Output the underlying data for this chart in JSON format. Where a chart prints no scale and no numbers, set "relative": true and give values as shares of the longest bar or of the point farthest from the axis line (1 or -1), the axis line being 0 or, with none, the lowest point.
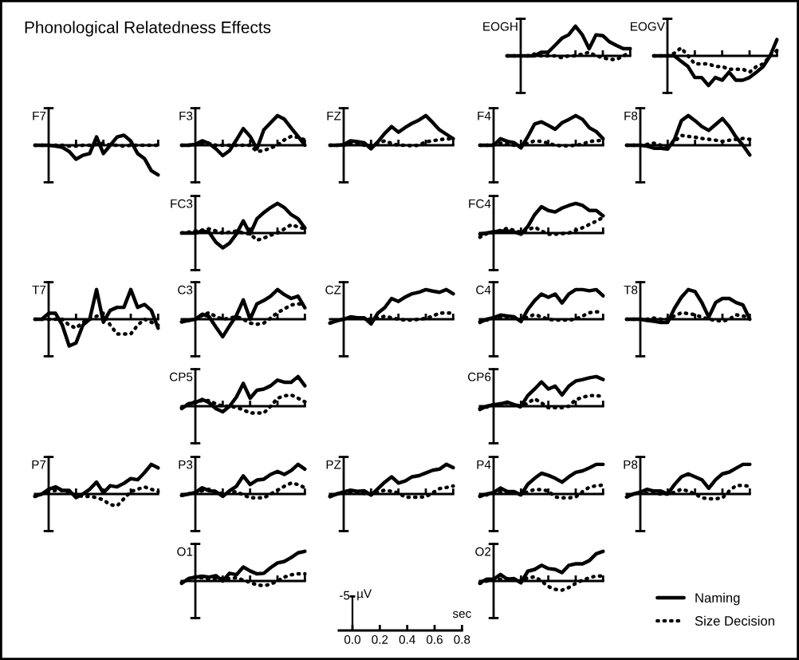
{
  "chart_data": [
    {
      "type": "other",
      "title": "Phonological Relatedness Effects"
    },
    {
      "type": "line",
      "ylabel": "EOGH",
      "relative": true,
      "categories": [
        null,
        null,
        null,
        null,
        null,
        null,
        null,
        null,
        null,
        null,
        null,
        null,
        null,
        null,
        null,
        null,
        null,
        null,
        null
      ],
      "series": [
        {
          "color": "#000000",
          "line_style": "solid",
          "values": [
            0,
            0,
            0,
            0,
            0,
            0.12,
            0.12,
            0.35,
            0.59,
            0.71,
            1,
            0.71,
            0.24,
            0.71,
            0.68,
            0.47,
            0.35,
            0.24,
            0.24
          ]
        },
        {
          "color": "#000000",
          "line_style": "dotted",
          "values": [
            0,
            0,
            0,
            0,
            0.06,
            0,
            0,
            0,
            -0.06,
            0,
            0,
            0.06,
            0.12,
            0,
            -0.06,
            -0.12,
            -0.12,
            0,
            0.12
          ]
        }
      ]
    },
    {
      "type": "line",
      "ylabel": "EOGV",
      "relative": true,
      "categories": [
        null,
        null,
        null,
        null,
        null,
        null,
        null,
        null,
        null,
        null,
        null,
        null,
        null,
        null,
        null,
        null,
        null,
        null,
        null
      ],
      "series": [
        {
          "color": "#000000",
          "line_style": "solid",
          "values": [
            0,
            0,
            0,
            0,
            -0.18,
            -0.36,
            -0.73,
            -0.73,
            -1,
            -0.73,
            -0.82,
            -0.55,
            -0.82,
            -0.82,
            -0.73,
            -0.55,
            -0.36,
            0,
            0.55
          ]
        },
        {
          "color": "#000000",
          "line_style": "dotted",
          "values": [
            0,
            0,
            0,
            0.09,
            0.27,
            0,
            -0.27,
            -0.27,
            -0.27,
            -0.36,
            -0.36,
            -0.45,
            -0.45,
            -0.45,
            -0.55,
            -0.36,
            -0.27,
            0,
            0.18
          ]
        }
      ]
    },
    {
      "type": "line",
      "ylabel": "F7",
      "relative": true,
      "categories": [
        null,
        null,
        null,
        null,
        null,
        null,
        null,
        null,
        null,
        null,
        null,
        null,
        null,
        null,
        null,
        null,
        null,
        null,
        null
      ],
      "series": [
        {
          "color": "#000000",
          "line_style": "solid",
          "values": [
            0,
            0,
            0,
            -0.03,
            -0.07,
            -0.21,
            -0.47,
            -0.34,
            -0.28,
            0.28,
            -0.28,
            0,
            0.28,
            0.34,
            0.14,
            -0.28,
            -0.45,
            -0.86,
            -1
          ]
        },
        {
          "color": "#000000",
          "line_style": "dotted",
          "values": [
            0,
            0,
            0,
            0,
            0,
            -0.03,
            -0.03,
            0,
            0,
            0.03,
            0.07,
            0,
            0,
            -0.03,
            0,
            0,
            0,
            0,
            0
          ]
        }
      ]
    },
    {
      "type": "line",
      "ylabel": "F3",
      "relative": true,
      "categories": [
        null,
        null,
        null,
        null,
        null,
        null,
        null,
        null,
        null,
        null,
        null,
        null,
        null,
        null,
        null,
        null,
        null,
        null,
        null
      ],
      "series": [
        {
          "color": "#000000",
          "line_style": "solid",
          "values": [
            0,
            0,
            0.03,
            0.15,
            0.06,
            -0.12,
            -0.35,
            -0.18,
            0.18,
            0.56,
            0.3,
            -0.12,
            0.52,
            0.76,
            1,
            0.88,
            0.58,
            0.3,
            0
          ]
        },
        {
          "color": "#000000",
          "line_style": "dotted",
          "values": [
            0,
            0,
            0.03,
            0.06,
            0.06,
            0,
            0,
            0,
            0,
            0,
            0,
            -0.21,
            -0.18,
            -0.09,
            0,
            0.18,
            0.3,
            0.27,
            0.18
          ]
        }
      ]
    },
    {
      "type": "line",
      "ylabel": "FZ",
      "relative": true,
      "categories": [
        null,
        null,
        null,
        null,
        null,
        null,
        null,
        null,
        null,
        null,
        null,
        null,
        null,
        null,
        null,
        null,
        null,
        null,
        null
      ],
      "series": [
        {
          "color": "#000000",
          "line_style": "solid",
          "values": [
            0,
            0,
            0.02,
            0.15,
            0.12,
            0.08,
            -0.12,
            0.12,
            0.4,
            0.63,
            0.44,
            0.6,
            0.74,
            0.85,
            1,
            0.77,
            0.52,
            0.37,
            0.22
          ]
        },
        {
          "color": "#000000",
          "line_style": "dotted",
          "values": [
            0,
            0,
            0,
            0.04,
            0.04,
            0,
            0,
            0.08,
            0.15,
            0.06,
            0,
            0,
            -0.02,
            0,
            0.12,
            0.15,
            0.19,
            0.21,
            0.22
          ]
        }
      ]
    },
    {
      "type": "line",
      "ylabel": "F4",
      "relative": true,
      "categories": [
        null,
        null,
        null,
        null,
        null,
        null,
        null,
        null,
        null,
        null,
        null,
        null,
        null,
        null,
        null,
        null,
        null,
        null,
        null
      ],
      "series": [
        {
          "color": "#000000",
          "line_style": "solid",
          "values": [
            0,
            0,
            0,
            0.22,
            0.13,
            0.09,
            -0.09,
            0.29,
            0.72,
            0.79,
            0.67,
            0.54,
            0.76,
            0.87,
            1,
            0.87,
            0.59,
            0.46,
            0.22
          ]
        },
        {
          "color": "#000000",
          "line_style": "dotted",
          "values": [
            0,
            0,
            0.02,
            0.07,
            0.04,
            0,
            -0.04,
            0.07,
            0.15,
            0.13,
            0.07,
            0,
            -0.02,
            -0.02,
            0,
            0.04,
            0.13,
            0.15,
            0.17
          ]
        }
      ]
    },
    {
      "type": "line",
      "ylabel": "F8",
      "relative": true,
      "categories": [
        null,
        null,
        null,
        null,
        null,
        null,
        null,
        null,
        null,
        null,
        null,
        null,
        null,
        null,
        null,
        null,
        null,
        null,
        null
      ],
      "series": [
        {
          "color": "#000000",
          "line_style": "solid",
          "values": [
            0,
            0,
            0,
            -0.03,
            -0.1,
            -0.1,
            -0.13,
            0.2,
            0.83,
            1,
            0.83,
            0.63,
            0.5,
            0.7,
            0.9,
            0.63,
            0.27,
            0,
            -0.33
          ]
        },
        {
          "color": "#000000",
          "line_style": "dotted",
          "values": [
            0,
            0,
            0,
            0.03,
            0.07,
            0,
            -0.07,
            0.13,
            0.33,
            0.3,
            0.27,
            0.23,
            0.2,
            0.17,
            0.13,
            0.17,
            0.2,
            0.23,
            0.2
          ]
        }
      ]
    },
    {
      "type": "line",
      "ylabel": "FC3",
      "relative": true,
      "categories": [
        null,
        null,
        null,
        null,
        null,
        null,
        null,
        null,
        null,
        null,
        null,
        null,
        null,
        null,
        null,
        null,
        null,
        null,
        null
      ],
      "series": [
        {
          "color": "#000000",
          "line_style": "solid",
          "values": [
            0,
            0,
            0,
            0.07,
            0.03,
            -0.31,
            -0.5,
            -0.34,
            -0.03,
            0.41,
            -0.03,
            0.48,
            0.69,
            0.86,
            1,
            0.86,
            0.62,
            0.48,
            0.17
          ]
        },
        {
          "color": "#000000",
          "line_style": "dotted",
          "values": [
            0,
            0.03,
            0.07,
            0.1,
            0.14,
            0.07,
            0,
            0.03,
            0.07,
            0,
            -0.03,
            -0.24,
            -0.17,
            -0.07,
            0,
            0.14,
            0.28,
            0.21,
            0.14
          ]
        }
      ]
    },
    {
      "type": "line",
      "ylabel": "FC4",
      "relative": true,
      "categories": [
        null,
        null,
        null,
        null,
        null,
        null,
        null,
        null,
        null,
        null,
        null,
        null,
        null,
        null,
        null,
        null,
        null,
        null,
        null
      ],
      "series": [
        {
          "color": "#000000",
          "line_style": "solid",
          "values": [
            -0.04,
            0,
            0.04,
            0.07,
            0.07,
            0.04,
            -0.04,
            0.22,
            0.62,
            0.89,
            0.76,
            0.71,
            0.84,
            0.93,
            1,
            0.93,
            0.76,
            0.76,
            0.58
          ]
        },
        {
          "color": "#000000",
          "line_style": "dotted",
          "values": [
            -0.14,
            -0.02,
            0.02,
            0.09,
            0.16,
            0.09,
            0.02,
            0.11,
            0.2,
            0.07,
            -0.04,
            -0.04,
            -0.02,
            0,
            0.09,
            0.18,
            0.29,
            0.4,
            0.53
          ]
        }
      ]
    },
    {
      "type": "line",
      "ylabel": "T7",
      "relative": true,
      "categories": [
        null,
        null,
        null,
        null,
        null,
        null,
        null,
        null,
        null,
        null,
        null,
        null,
        null,
        null,
        null,
        null,
        null,
        null,
        null
      ],
      "series": [
        {
          "color": "#000000",
          "line_style": "solid",
          "values": [
            0,
            0,
            0.2,
            0.2,
            -0.2,
            -0.9,
            -0.8,
            -0.2,
            0,
            1,
            -0.1,
            0.3,
            0.4,
            0.4,
            1,
            0.4,
            0.5,
            0.3,
            -0.3
          ]
        },
        {
          "color": "#000000",
          "line_style": "dotted",
          "values": [
            0,
            0,
            0,
            0,
            0,
            -0.2,
            -0.3,
            -0.1,
            0,
            0.1,
            0.2,
            -0.2,
            -0.5,
            -0.5,
            -0.5,
            -0.2,
            0,
            -0.1,
            -0.2
          ]
        }
      ]
    },
    {
      "type": "line",
      "ylabel": "C3",
      "relative": true,
      "categories": [
        null,
        null,
        null,
        null,
        null,
        null,
        null,
        null,
        null,
        null,
        null,
        null,
        null,
        null,
        null,
        null,
        null,
        null,
        null
      ],
      "series": [
        {
          "color": "#000000",
          "line_style": "solid",
          "values": [
            -0.09,
            -0.04,
            0,
            0.17,
            0.09,
            -0.26,
            -0.59,
            -0.22,
            0.13,
            0.65,
            0,
            0.52,
            0.63,
            0.78,
            1,
            0.83,
            0.7,
            0.78,
            0.39
          ]
        },
        {
          "color": "#000000",
          "line_style": "dotted",
          "values": [
            -0.09,
            -0.04,
            0,
            0.13,
            0.22,
            0.09,
            0,
            0.04,
            0.09,
            0,
            -0.13,
            -0.17,
            -0.13,
            0.04,
            0.22,
            0.35,
            0.48,
            0.52,
            0.48
          ]
        }
      ]
    },
    {
      "type": "line",
      "ylabel": "CZ",
      "relative": true,
      "categories": [
        null,
        null,
        null,
        null,
        null,
        null,
        null,
        null,
        null,
        null,
        null,
        null,
        null,
        null,
        null,
        null,
        null,
        null,
        null
      ],
      "series": [
        {
          "color": "#000000",
          "line_style": "solid",
          "values": [
            -0.13,
            -0.05,
            0,
            0.08,
            0.05,
            0.05,
            -0.16,
            0.21,
            0.39,
            0.7,
            0.6,
            0.75,
            0.86,
            0.91,
            1,
            0.95,
            0.91,
            1,
            0.86
          ]
        },
        {
          "color": "#000000",
          "line_style": "dotted",
          "values": [
            -0.13,
            -0.05,
            0,
            0.05,
            0.05,
            0.03,
            0,
            0.05,
            0.1,
            0.05,
            0,
            -0.03,
            -0.03,
            0,
            0.03,
            0.1,
            0.21,
            0.21,
            0.21
          ]
        }
      ]
    },
    {
      "type": "line",
      "ylabel": "C4",
      "relative": true,
      "categories": [
        null,
        null,
        null,
        null,
        null,
        null,
        null,
        null,
        null,
        null,
        null,
        null,
        null,
        null,
        null,
        null,
        null,
        null,
        null
      ],
      "series": [
        {
          "color": "#000000",
          "line_style": "solid",
          "values": [
            -0.11,
            0,
            0.05,
            0.14,
            0.11,
            0.08,
            -0.08,
            0.33,
            0.63,
            0.85,
            0.74,
            0.85,
            0.55,
            0.85,
            1,
            1,
            0.96,
            1,
            0.79
          ]
        },
        {
          "color": "#000000",
          "line_style": "dotted",
          "values": [
            -0.08,
            -0.03,
            0.05,
            0.08,
            0.08,
            0.03,
            -0.03,
            0.08,
            0.16,
            0.08,
            0,
            -0.03,
            -0.03,
            -0.03,
            0,
            0.11,
            0.22,
            0.25,
            0.25
          ]
        }
      ]
    },
    {
      "type": "line",
      "ylabel": "T8",
      "relative": true,
      "categories": [
        null,
        null,
        null,
        null,
        null,
        null,
        null,
        null,
        null,
        null,
        null,
        null,
        null,
        null,
        null,
        null,
        null,
        null,
        null
      ],
      "series": [
        {
          "color": "#000000",
          "line_style": "solid",
          "values": [
            0,
            0,
            0,
            -0.04,
            -0.07,
            -0.11,
            -0.11,
            0.37,
            0.74,
            1,
            0.93,
            0.56,
            0.07,
            0.56,
            0.7,
            0.7,
            0.56,
            0.48,
            0
          ]
        },
        {
          "color": "#000000",
          "line_style": "dotted",
          "values": [
            0,
            0,
            0,
            0,
            0.04,
            0,
            0,
            0.11,
            0.22,
            0.19,
            0.15,
            0.07,
            0,
            -0.04,
            -0.07,
            0,
            0.15,
            0.11,
            0.04
          ]
        }
      ]
    },
    {
      "type": "line",
      "ylabel": "CP5",
      "relative": true,
      "categories": [
        null,
        null,
        null,
        null,
        null,
        null,
        null,
        null,
        null,
        null,
        null,
        null,
        null,
        null,
        null,
        null,
        null,
        null,
        null
      ],
      "series": [
        {
          "color": "#000000",
          "line_style": "solid",
          "values": [
            -0.08,
            0.08,
            0.12,
            0.23,
            0.12,
            -0.08,
            -0.19,
            0,
            0.31,
            0.77,
            0.27,
            0.54,
            0.58,
            0.69,
            0.88,
            0.81,
            0.81,
            1,
            0.69
          ]
        },
        {
          "color": "#000000",
          "line_style": "dotted",
          "values": [
            -0.04,
            0.08,
            0.15,
            0.19,
            0.19,
            0.08,
            0,
            0,
            -0.04,
            -0.12,
            -0.23,
            -0.23,
            -0.23,
            0,
            0.27,
            0.35,
            0.38,
            0.27,
            0.15
          ]
        }
      ]
    },
    {
      "type": "line",
      "ylabel": "CP6",
      "relative": true,
      "categories": [
        null,
        null,
        null,
        null,
        null,
        null,
        null,
        null,
        null,
        null,
        null,
        null,
        null,
        null,
        null,
        null,
        null,
        null,
        null
      ],
      "series": [
        {
          "color": "#000000",
          "line_style": "solid",
          "values": [
            -0.11,
            0,
            0.05,
            0.08,
            0.14,
            0.05,
            0,
            0.36,
            0.58,
            0.82,
            0.58,
            0.68,
            0.38,
            0.68,
            0.85,
            0.9,
            0.96,
            1,
            0.9
          ]
        },
        {
          "color": "#000000",
          "line_style": "dotted",
          "values": [
            -0.08,
            -0.03,
            0.05,
            0.08,
            0.11,
            0.05,
            -0.03,
            0.11,
            0.25,
            0.11,
            -0.05,
            -0.05,
            -0.05,
            0,
            0.22,
            0.3,
            0.36,
            0.36,
            0.33
          ]
        }
      ]
    },
    {
      "type": "line",
      "ylabel": "P7",
      "relative": true,
      "categories": [
        null,
        null,
        null,
        null,
        null,
        null,
        null,
        null,
        null,
        null,
        null,
        null,
        null,
        null,
        null,
        null,
        null,
        null,
        null
      ],
      "series": [
        {
          "color": "#000000",
          "line_style": "solid",
          "values": [
            -0.08,
            0,
            0.16,
            0.24,
            0.12,
            0.12,
            -0.12,
            0,
            0.16,
            0.4,
            0.04,
            0.28,
            0.24,
            0.36,
            0.52,
            0.48,
            0.72,
            1,
            0.88
          ]
        },
        {
          "color": "#000000",
          "line_style": "dotted",
          "values": [
            -0.08,
            0,
            0.08,
            0.12,
            0.12,
            0.04,
            -0.04,
            -0.08,
            -0.08,
            -0.12,
            -0.2,
            -0.36,
            -0.4,
            -0.16,
            0.08,
            0.16,
            0.24,
            0.16,
            0.08
          ]
        }
      ]
    },
    {
      "type": "line",
      "ylabel": "P3",
      "relative": true,
      "categories": [
        null,
        null,
        null,
        null,
        null,
        null,
        null,
        null,
        null,
        null,
        null,
        null,
        null,
        null,
        null,
        null,
        null,
        null,
        null
      ],
      "series": [
        {
          "color": "#000000",
          "line_style": "solid",
          "values": [
            -0.05,
            0,
            0.05,
            0.21,
            0.11,
            0.08,
            -0.08,
            0.11,
            0.26,
            0.61,
            0.32,
            0.47,
            0.5,
            0.66,
            0.76,
            0.66,
            0.79,
            1,
            0.84
          ]
        },
        {
          "color": "#000000",
          "line_style": "dotted",
          "values": [
            -0.05,
            0,
            0.05,
            0.11,
            0.16,
            0.08,
            0,
            0.05,
            0.08,
            -0.03,
            -0.13,
            -0.13,
            -0.13,
            0,
            0.13,
            0.26,
            0.37,
            0.32,
            0.21
          ]
        }
      ]
    },
    {
      "type": "line",
      "ylabel": "PZ",
      "relative": true,
      "categories": [
        null,
        null,
        null,
        null,
        null,
        null,
        null,
        null,
        null,
        null,
        null,
        null,
        null,
        null,
        null,
        null,
        null,
        null,
        null
      ],
      "series": [
        {
          "color": "#000000",
          "line_style": "solid",
          "values": [
            -0.09,
            0,
            0.07,
            0.13,
            0.09,
            0.11,
            -0.04,
            0.18,
            0.4,
            0.58,
            0.37,
            0.44,
            0.58,
            0.62,
            0.71,
            0.8,
            0.84,
            1,
            0.89
          ]
        },
        {
          "color": "#000000",
          "line_style": "dotted",
          "values": [
            -0.07,
            0,
            0.04,
            0.07,
            0.07,
            0.02,
            0,
            0.07,
            0.13,
            0.09,
            0.04,
            -0.11,
            -0.11,
            -0.11,
            -0.09,
            0.04,
            0.18,
            0.22,
            0.27
          ]
        }
      ]
    },
    {
      "type": "line",
      "ylabel": "P4",
      "relative": true,
      "categories": [
        null,
        null,
        null,
        null,
        null,
        null,
        null,
        null,
        null,
        null,
        null,
        null,
        null,
        null,
        null,
        null,
        null,
        null,
        null
      ],
      "series": [
        {
          "color": "#000000",
          "line_style": "solid",
          "values": [
            -0.08,
            0,
            0.05,
            0.2,
            0.08,
            0.08,
            -0.03,
            0.33,
            0.53,
            0.7,
            0.63,
            0.53,
            0.4,
            0.58,
            0.73,
            0.78,
            0.88,
            1,
            1
          ]
        },
        {
          "color": "#000000",
          "line_style": "dotted",
          "values": [
            -0.08,
            -0.03,
            0.03,
            0.05,
            0.08,
            0.03,
            -0.03,
            0.08,
            0.15,
            0.15,
            0.1,
            -0.1,
            -0.13,
            -0.13,
            -0.1,
            0.08,
            0.23,
            0.28,
            0.3
          ]
        }
      ]
    },
    {
      "type": "line",
      "ylabel": "P8",
      "relative": true,
      "categories": [
        null,
        null,
        null,
        null,
        null,
        null,
        null,
        null,
        null,
        null,
        null,
        null,
        null,
        null,
        null,
        null,
        null,
        null,
        null
      ],
      "series": [
        {
          "color": "#000000",
          "line_style": "solid",
          "values": [
            -0.1,
            0,
            0.06,
            0.16,
            0.1,
            0.1,
            0,
            0.32,
            0.58,
            0.68,
            0.58,
            0.48,
            0.19,
            0.48,
            0.68,
            0.74,
            0.87,
            1,
            1
          ]
        },
        {
          "color": "#000000",
          "line_style": "dotted",
          "values": [
            -0.1,
            0,
            0.06,
            0.03,
            0.03,
            0,
            0,
            0.06,
            0.16,
            0.1,
            0,
            -0.13,
            -0.16,
            -0.16,
            -0.13,
            0.1,
            0.29,
            0.29,
            0.26
          ]
        }
      ]
    },
    {
      "type": "line",
      "ylabel": "O1",
      "relative": true,
      "categories": [
        null,
        null,
        null,
        null,
        null,
        null,
        null,
        null,
        null,
        null,
        null,
        null,
        null,
        null,
        null,
        null,
        null,
        null,
        null
      ],
      "series": [
        {
          "color": "#000000",
          "line_style": "solid",
          "values": [
            -0.08,
            0.08,
            0.13,
            0.16,
            0.13,
            0.18,
            0,
            0.26,
            0.21,
            0.47,
            0.34,
            0.24,
            0.26,
            0.45,
            0.61,
            0.66,
            0.79,
            0.95,
            1
          ]
        },
        {
          "color": "#000000",
          "line_style": "dotted",
          "values": [
            -0.05,
            0.05,
            0.13,
            0.11,
            0.08,
            0.08,
            0.08,
            0.08,
            0.11,
            0.03,
            -0.05,
            -0.13,
            -0.16,
            -0.11,
            0,
            0.13,
            0.21,
            0.24,
            0.24
          ]
        }
      ]
    },
    {
      "type": "line",
      "ylabel": "O2",
      "relative": true,
      "legend": "bottom right",
      "categories": [
        null,
        null,
        null,
        null,
        null,
        null,
        null,
        null,
        null,
        null,
        null,
        null,
        null,
        null,
        null,
        null,
        null,
        null,
        null
      ],
      "series": [
        {
          "name": "Naming",
          "color": "#000000",
          "line_style": "solid",
          "values": [
            -0.06,
            0.06,
            0.06,
            0.22,
            0.06,
            0.08,
            -0.06,
            0.33,
            0.39,
            0.53,
            0.42,
            0.39,
            0.28,
            0.53,
            0.58,
            0.58,
            0.69,
            0.92,
            1
          ]
        },
        {
          "name": "Size Decision",
          "color": "#000000",
          "line_style": "dotted",
          "values": [
            -0.08,
            0,
            0.06,
            0.06,
            0.08,
            0.03,
            0,
            0.11,
            0.14,
            0,
            -0.19,
            -0.28,
            -0.31,
            -0.22,
            -0.08,
            0.03,
            0.11,
            0.17,
            0.17
          ]
        }
      ]
    },
    {
      "type": "bar",
      "relative": true,
      "xlabel": "sec",
      "xlim": [
        -0.1,
        0.8
      ],
      "xticks": [
        {
          "value": 0,
          "label": "0.0"
        },
        {
          "value": 0.2,
          "label": "0.2"
        },
        {
          "value": 0.4,
          "label": "0.4"
        },
        {
          "value": 0.6,
          "label": "0.6"
        },
        {
          "value": 0.8,
          "label": "0.8"
        }
      ],
      "x": [
        0
      ],
      "values": [
        1
      ],
      "color": "#000000",
      "annotations": [
        {
          "text": "-5",
          "x": 0,
          "y": 1
        },
        "µV"
      ]
    }
  ]
}
